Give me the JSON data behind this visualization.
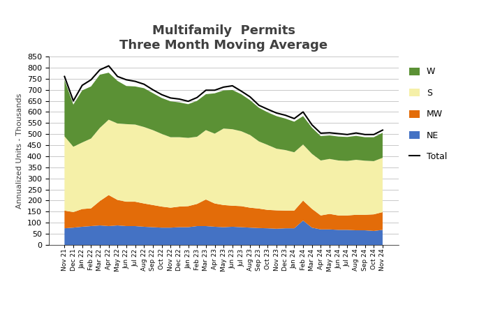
{
  "title": "Multifamily  Permits",
  "subtitle": "Three Month Moving Average",
  "ylabel": "Annualized Units - Thousands",
  "ylim": [
    0,
    850
  ],
  "labels": [
    "Nov 21",
    "Dec 21",
    "Jan 22",
    "Feb 22",
    "Mar 22",
    "Apr 22",
    "May 22",
    "Jun 22",
    "Jul 22",
    "Aug 22",
    "Sep 22",
    "Oct 22",
    "Nov 22",
    "Dec 22",
    "Jan 23",
    "Feb 23",
    "Mar 23",
    "Apr 23",
    "May 23",
    "Jun 23",
    "Jul 23",
    "Aug 23",
    "Sep 23",
    "Oct 23",
    "Nov 23",
    "Dec 23",
    "Jan 24",
    "Feb 24",
    "Mar 24",
    "Apr 24",
    "May 24",
    "Jun 24",
    "Jul 24",
    "Aug 24",
    "Sep 24",
    "Oct 24",
    "Nov 24"
  ],
  "NE": [
    75,
    78,
    82,
    85,
    88,
    85,
    88,
    85,
    85,
    82,
    80,
    78,
    78,
    80,
    80,
    85,
    85,
    82,
    80,
    82,
    80,
    78,
    76,
    75,
    73,
    75,
    75,
    110,
    78,
    70,
    70,
    68,
    68,
    66,
    66,
    63,
    68
  ],
  "MW": [
    80,
    70,
    80,
    80,
    110,
    140,
    115,
    110,
    110,
    105,
    100,
    95,
    90,
    93,
    95,
    100,
    120,
    105,
    100,
    95,
    95,
    90,
    88,
    83,
    83,
    80,
    80,
    90,
    85,
    63,
    70,
    65,
    65,
    70,
    70,
    75,
    80
  ],
  "S": [
    335,
    295,
    300,
    315,
    330,
    340,
    345,
    350,
    348,
    345,
    338,
    328,
    318,
    313,
    308,
    303,
    313,
    315,
    345,
    345,
    338,
    328,
    303,
    293,
    278,
    273,
    263,
    253,
    248,
    248,
    248,
    248,
    246,
    248,
    244,
    240,
    245
  ],
  "W": [
    255,
    190,
    235,
    235,
    240,
    212,
    192,
    172,
    172,
    175,
    167,
    162,
    162,
    157,
    152,
    162,
    162,
    182,
    172,
    177,
    167,
    157,
    152,
    147,
    147,
    142,
    138,
    128,
    118,
    110,
    106,
    108,
    108,
    108,
    106,
    108,
    113
  ],
  "total": [
    760,
    650,
    720,
    745,
    790,
    808,
    760,
    745,
    738,
    725,
    700,
    678,
    663,
    658,
    648,
    665,
    698,
    698,
    712,
    718,
    694,
    668,
    630,
    612,
    595,
    585,
    570,
    600,
    542,
    504,
    506,
    502,
    498,
    505,
    498,
    498,
    518
  ],
  "colors": {
    "NE": "#4472C4",
    "MW": "#E36C09",
    "S": "#F5F0A8",
    "W": "#5B9135",
    "Total": "#000000"
  },
  "background_color": "#FFFFFF",
  "title_color": "#404040",
  "title_fontsize": 13,
  "subtitle_fontsize": 11
}
